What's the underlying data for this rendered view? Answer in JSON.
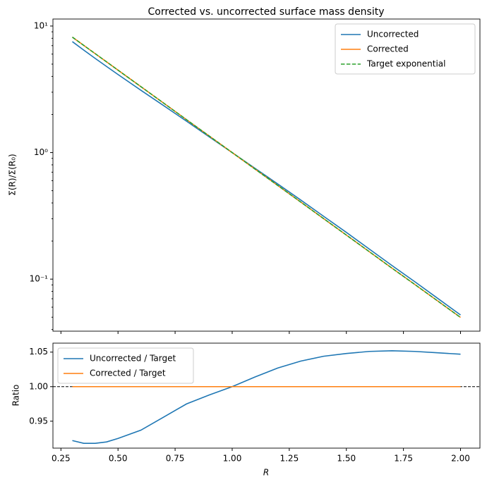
{
  "chart_data": [
    {
      "type": "line",
      "title": "Corrected vs. uncorrected surface mass density",
      "ylabel": "Σ(R)/Σ(R₀)",
      "log_y": true,
      "legend": "upper right",
      "x": [
        0.3,
        0.35,
        0.4,
        0.45,
        0.5,
        0.6,
        0.7,
        0.8,
        0.9,
        1.0,
        1.1,
        1.2,
        1.3,
        1.4,
        1.5,
        1.6,
        1.7,
        1.8,
        1.9,
        2.0
      ],
      "series": [
        {
          "name": "Uncorrected",
          "color": "#1f77b4",
          "style": "solid",
          "values": [
            7.53,
            6.45,
            5.55,
            4.79,
            4.14,
            3.11,
            2.35,
            1.77,
            1.33,
            1.0,
            0.751,
            0.564,
            0.422,
            0.314,
            0.234,
            0.173,
            0.128,
            0.0953,
            0.0705,
            0.0521
          ]
        },
        {
          "name": "Corrected",
          "color": "#ff7f0e",
          "style": "solid",
          "values": [
            8.17,
            7.03,
            6.05,
            5.21,
            4.48,
            3.32,
            2.46,
            1.82,
            1.35,
            1.0,
            0.741,
            0.549,
            0.407,
            0.301,
            0.223,
            0.165,
            0.122,
            0.0907,
            0.0672,
            0.0498
          ]
        },
        {
          "name": "Target exponential",
          "color": "#2ca02c",
          "style": "dashed",
          "values": [
            8.17,
            7.03,
            6.05,
            5.21,
            4.48,
            3.32,
            2.46,
            1.82,
            1.35,
            1.0,
            0.741,
            0.549,
            0.407,
            0.301,
            0.223,
            0.165,
            0.122,
            0.0907,
            0.0672,
            0.0498
          ]
        }
      ],
      "xlim": [
        0.215,
        2.085
      ],
      "ylim": [
        0.0388,
        11.36
      ],
      "xticks": [
        0.25,
        0.5,
        0.75,
        1.0,
        1.25,
        1.5,
        1.75,
        2.0
      ],
      "yticks": [
        {
          "value": 0.1,
          "label": "10⁻¹"
        },
        {
          "value": 1,
          "label": "10⁰"
        },
        {
          "value": 10,
          "label": "10¹"
        }
      ],
      "minor_yticks": [
        0.04,
        0.05,
        0.06,
        0.07,
        0.08,
        0.09,
        0.2,
        0.3,
        0.4,
        0.5,
        0.6,
        0.7,
        0.8,
        0.9,
        2,
        3,
        4,
        5,
        6,
        7,
        8,
        9
      ]
    },
    {
      "type": "line",
      "xlabel": "R",
      "ylabel": "Ratio",
      "legend": "upper left",
      "x": [
        0.3,
        0.35,
        0.4,
        0.45,
        0.5,
        0.6,
        0.7,
        0.8,
        0.9,
        1.0,
        1.1,
        1.2,
        1.3,
        1.4,
        1.5,
        1.6,
        1.7,
        1.8,
        1.9,
        2.0
      ],
      "series": [
        {
          "name": "Uncorrected / Target",
          "color": "#1f77b4",
          "style": "solid",
          "values": [
            0.922,
            0.918,
            0.918,
            0.92,
            0.925,
            0.937,
            0.956,
            0.975,
            0.988,
            1.0,
            1.014,
            1.027,
            1.037,
            1.044,
            1.048,
            1.051,
            1.052,
            1.051,
            1.049,
            1.047
          ]
        },
        {
          "name": "Corrected / Target",
          "color": "#ff7f0e",
          "style": "solid",
          "values": [
            1,
            1,
            1,
            1,
            1,
            1,
            1,
            1,
            1,
            1,
            1,
            1,
            1,
            1,
            1,
            1,
            1,
            1,
            1,
            1
          ]
        }
      ],
      "hline": {
        "y": 1,
        "color": "#000000",
        "style": "dashed"
      },
      "xlim": [
        0.215,
        2.085
      ],
      "ylim": [
        0.911,
        1.063
      ],
      "xticks": [
        0.25,
        {
          "value": 0.5,
          "label": "0.50"
        },
        0.75,
        {
          "value": 1.0,
          "label": "1.00"
        },
        1.25,
        {
          "value": 1.5,
          "label": "1.50"
        },
        1.75,
        {
          "value": 2.0,
          "label": "2.00"
        }
      ],
      "yticks": [
        0.95,
        {
          "value": 1,
          "label": "1.00"
        },
        1.05
      ]
    }
  ]
}
